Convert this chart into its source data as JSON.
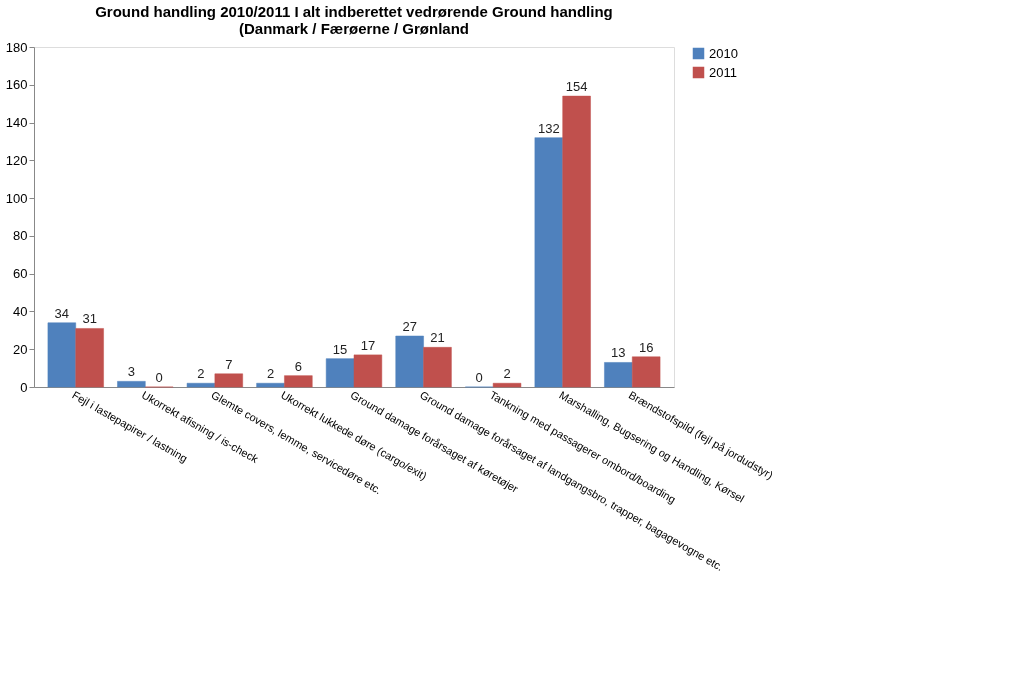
{
  "chart_data": {
    "type": "bar",
    "title": [
      "Ground handling 2010/2011 I alt indberettet vedrørende Ground handling",
      "(Danmark / Færøerne / Grønland"
    ],
    "categories": [
      "Fejl i lastepapirer / lastning",
      "Ukorrekt afisning / is-check",
      "Glemte covers, lemme, servicedøre etc.",
      "Ukorrekt lukkede døre (cargo/exit)",
      "Ground damage forårsaget af køretøjer",
      "Ground damage forårsaget af landgangsbro, trapper, bagagevogne etc.",
      "Tankning med passagerer ombord/boarding",
      "Marshalling, Bugsering og Handling, Kørsel",
      "Brændstofspild (fejl på jordudstyr)"
    ],
    "series": [
      {
        "name": "2010",
        "color": "#4f81bd",
        "values": [
          34,
          3,
          2,
          2,
          15,
          27,
          0,
          132,
          13
        ]
      },
      {
        "name": "2011",
        "color": "#c0504d",
        "values": [
          31,
          0,
          7,
          6,
          17,
          21,
          2,
          154,
          16
        ]
      }
    ],
    "ylim": [
      0,
      180
    ],
    "yticks": [
      0,
      20,
      40,
      60,
      80,
      100,
      120,
      140,
      160,
      180
    ],
    "grid": false,
    "legend": "right",
    "data_labels": true
  }
}
